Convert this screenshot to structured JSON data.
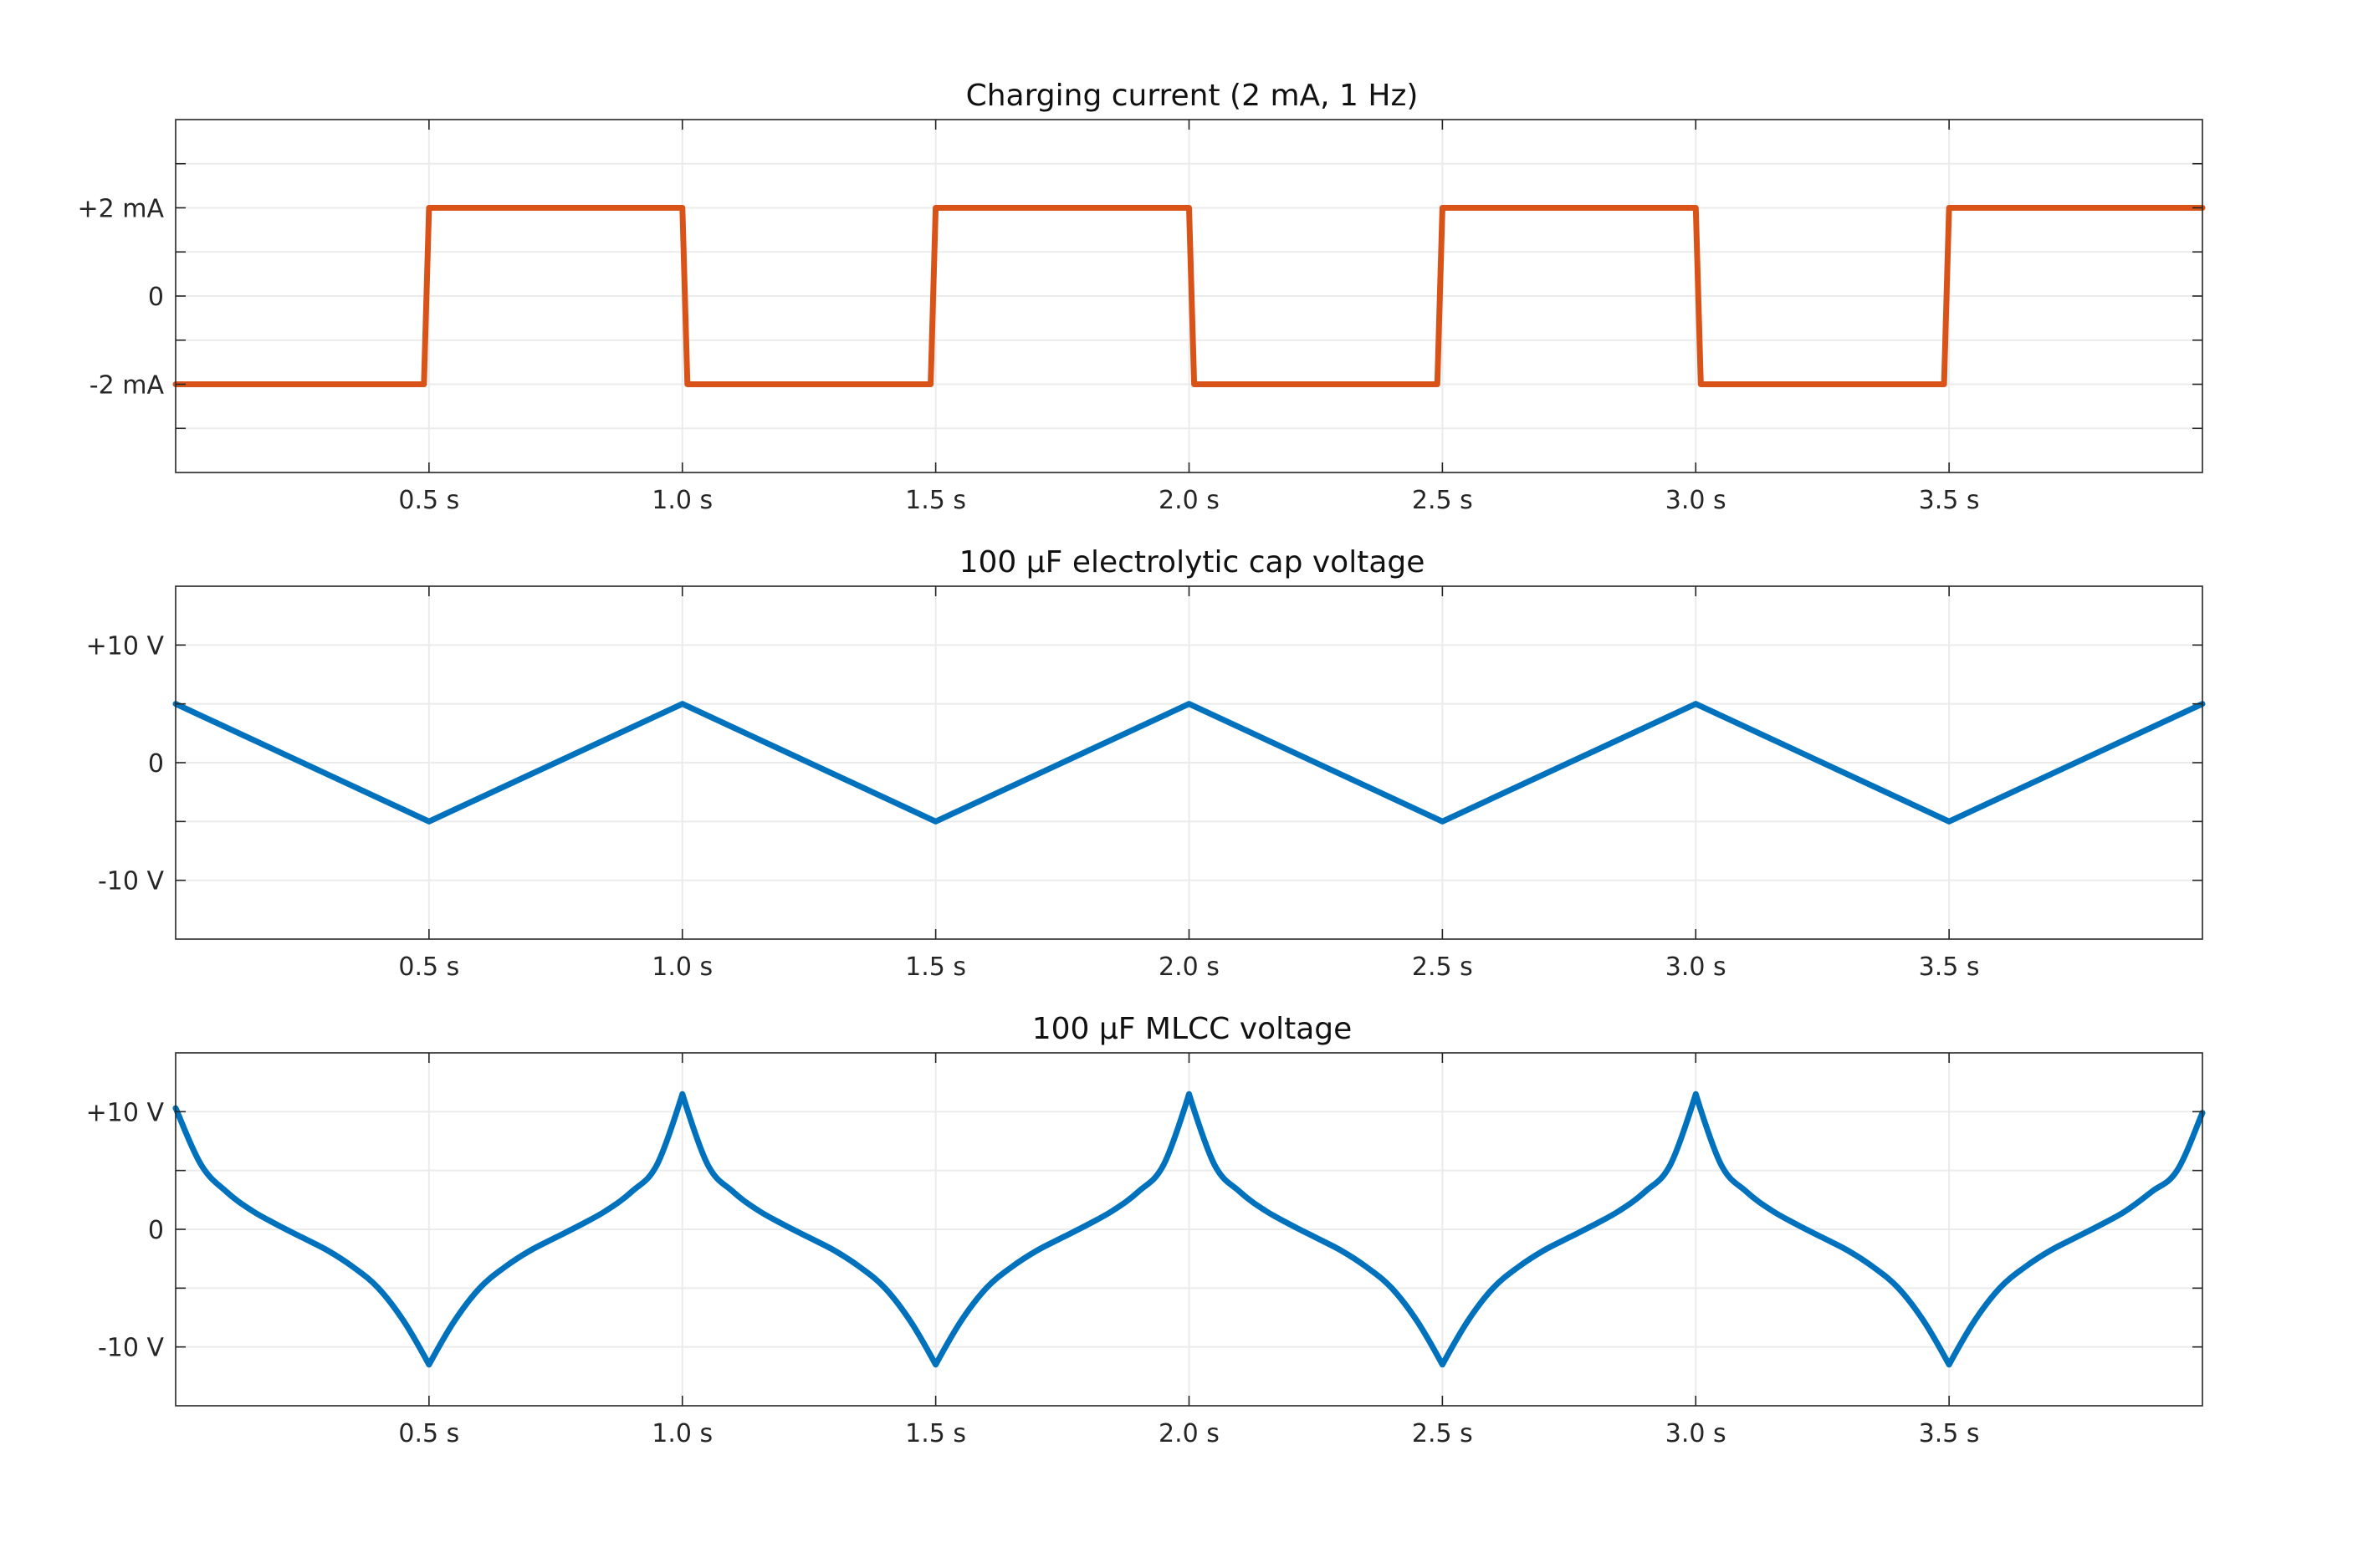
{
  "chart_data": [
    {
      "type": "line",
      "title": "Charging current (2 mA, 1 Hz)",
      "xlabel": "",
      "ylabel": "",
      "xlim": [
        0,
        4
      ],
      "ylim": [
        -4,
        4
      ],
      "grid": true,
      "legend": "none",
      "x_ticks": [
        0.5,
        1.0,
        1.5,
        2.0,
        2.5,
        3.0,
        3.5
      ],
      "x_tick_labels": [
        "0.5 s",
        "1.0 s",
        "1.5 s",
        "2.0 s",
        "2.5 s",
        "3.0 s",
        "3.5 s"
      ],
      "y_ticks": [
        -2,
        0,
        2
      ],
      "y_tick_labels": [
        "-2 mA",
        "0",
        "+2 mA"
      ],
      "series": [
        {
          "color": "#d95319",
          "x": [
            0,
            0.49,
            0.5,
            1.0,
            1.01,
            1.49,
            1.5,
            2.0,
            2.01,
            2.49,
            2.5,
            3.0,
            3.01,
            3.49,
            3.5,
            4.0
          ],
          "y": [
            -2,
            -2,
            2,
            2,
            -2,
            -2,
            2,
            2,
            -2,
            -2,
            2,
            2,
            -2,
            -2,
            2,
            2
          ]
        }
      ]
    },
    {
      "type": "line",
      "title": "100 μF electrolytic cap voltage",
      "xlabel": "",
      "ylabel": "",
      "xlim": [
        0,
        4
      ],
      "ylim": [
        -15,
        15
      ],
      "grid": true,
      "legend": "none",
      "x_ticks": [
        0.5,
        1.0,
        1.5,
        2.0,
        2.5,
        3.0,
        3.5
      ],
      "x_tick_labels": [
        "0.5 s",
        "1.0 s",
        "1.5 s",
        "2.0 s",
        "2.5 s",
        "3.0 s",
        "3.5 s"
      ],
      "y_ticks": [
        -10,
        0,
        10
      ],
      "y_tick_labels": [
        "-10 V",
        "0",
        "+10 V"
      ],
      "series": [
        {
          "color": "#0072bd",
          "x": [
            0,
            0.5,
            1.0,
            1.5,
            2.0,
            2.5,
            3.0,
            3.5,
            4.0
          ],
          "y": [
            5,
            -5,
            5,
            -5,
            5,
            -5,
            5,
            -5,
            5
          ]
        }
      ]
    },
    {
      "type": "line",
      "title": "100 μF MLCC voltage",
      "xlabel": "",
      "ylabel": "",
      "xlim": [
        0,
        4
      ],
      "ylim": [
        -15,
        15
      ],
      "grid": true,
      "legend": "none",
      "x_ticks": [
        0.5,
        1.0,
        1.5,
        2.0,
        2.5,
        3.0,
        3.5
      ],
      "x_tick_labels": [
        "0.5 s",
        "1.0 s",
        "1.5 s",
        "2.0 s",
        "2.5 s",
        "3.0 s",
        "3.5 s"
      ],
      "y_ticks": [
        -10,
        0,
        10
      ],
      "y_tick_labels": [
        "-10 V",
        "0",
        "+10 V"
      ],
      "series": [
        {
          "color": "#0072bd",
          "x": [
            0,
            0.05,
            0.1,
            0.15,
            0.2,
            0.25,
            0.3,
            0.35,
            0.4,
            0.45,
            0.5,
            0.55,
            0.6,
            0.65,
            0.7,
            0.75,
            0.8,
            0.85,
            0.9,
            0.95,
            1.0,
            1.05,
            1.1,
            1.15,
            1.2,
            1.25,
            1.3,
            1.35,
            1.4,
            1.45,
            1.5,
            1.55,
            1.6,
            1.65,
            1.7,
            1.75,
            1.8,
            1.85,
            1.9,
            1.95,
            2.0,
            2.05,
            2.1,
            2.15,
            2.2,
            2.25,
            2.3,
            2.35,
            2.4,
            2.45,
            2.5,
            2.55,
            2.6,
            2.65,
            2.7,
            2.75,
            2.8,
            2.85,
            2.9,
            2.95,
            3.0,
            3.05,
            3.1,
            3.15,
            3.2,
            3.25,
            3.3,
            3.35,
            3.4,
            3.45,
            3.5,
            3.55,
            3.6,
            3.65,
            3.7,
            3.75,
            3.8,
            3.85,
            3.9,
            3.95,
            4.0
          ],
          "y": [
            10.3,
            5.5,
            3.2,
            1.6,
            0.4,
            -0.7,
            -1.8,
            -3.2,
            -5.0,
            -7.8,
            -11.5,
            -7.8,
            -5.0,
            -3.2,
            -1.8,
            -0.7,
            0.4,
            1.6,
            3.2,
            5.5,
            11.5,
            5.5,
            3.2,
            1.6,
            0.4,
            -0.7,
            -1.8,
            -3.2,
            -5.0,
            -7.8,
            -11.5,
            -7.8,
            -5.0,
            -3.2,
            -1.8,
            -0.7,
            0.4,
            1.6,
            3.2,
            5.5,
            11.5,
            5.5,
            3.2,
            1.6,
            0.4,
            -0.7,
            -1.8,
            -3.2,
            -5.0,
            -7.8,
            -11.5,
            -7.8,
            -5.0,
            -3.2,
            -1.8,
            -0.7,
            0.4,
            1.6,
            3.2,
            5.5,
            11.5,
            5.5,
            3.2,
            1.6,
            0.4,
            -0.7,
            -1.8,
            -3.2,
            -5.0,
            -7.8,
            -11.5,
            -7.8,
            -5.0,
            -3.2,
            -1.8,
            -0.7,
            0.4,
            1.6,
            3.2,
            5.0,
            9.9
          ]
        }
      ]
    }
  ]
}
